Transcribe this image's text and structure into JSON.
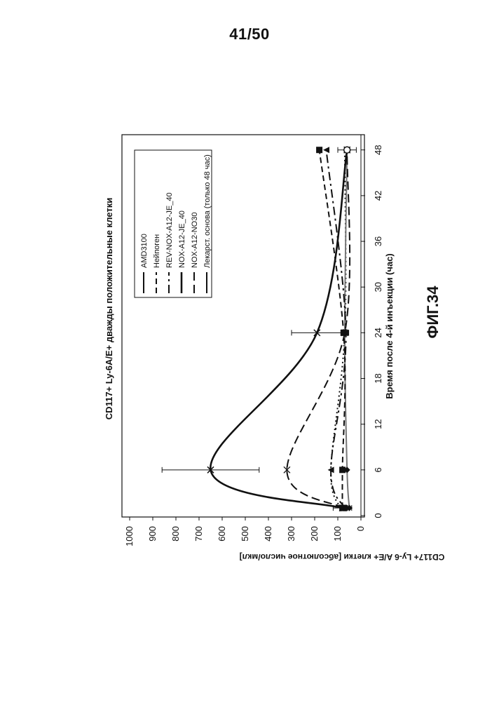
{
  "page_number": "41/50",
  "figure_label": "ФИГ.34",
  "chart_data": {
    "type": "line",
    "title": "CD117+ Ly-6A/E+ дважды положительные клетки",
    "xlabel": "Время после 4-й инъекции (час)",
    "ylabel": "CD117+ Ly-6 A/E+ клетки [абсолютное число/мкл]",
    "x_ticks": [
      "0",
      "6",
      "12",
      "18",
      "24",
      "30",
      "36",
      "42",
      "48"
    ],
    "y_ticks": [
      "0",
      "100",
      "200",
      "300",
      "400",
      "500",
      "600",
      "700",
      "800",
      "900",
      "1000"
    ],
    "xlim": [
      0,
      50
    ],
    "ylim": [
      0,
      1000
    ],
    "grid": false,
    "legend_position": "top-right",
    "x": [
      1,
      6,
      24,
      48
    ],
    "series": [
      {
        "name": "AMD3100",
        "marker": "diamond",
        "dash": "solid",
        "color": "#777777",
        "values": [
          50,
          60,
          70,
          60
        ]
      },
      {
        "name": "Нейпоген",
        "marker": "square",
        "dash": "dash",
        "color": "#111111",
        "values": [
          80,
          80,
          75,
          180
        ]
      },
      {
        "name": "REV-NOX-A12-JE_40",
        "marker": "triangle",
        "dash": "dashdot",
        "color": "#111111",
        "values": [
          70,
          130,
          65,
          150
        ]
      },
      {
        "name": "NOX-A12-JE_40",
        "marker": "x",
        "dash": "solid-thick",
        "color": "#111111",
        "values": [
          80,
          650,
          190,
          60
        ]
      },
      {
        "name": "NOX-A12-NO30",
        "marker": "star",
        "dash": "dash-long",
        "color": "#111111",
        "values": [
          75,
          320,
          70,
          60
        ]
      },
      {
        "name": "Лекарст. основа (только 48 час)",
        "marker": "circle",
        "dash": "solid",
        "color": "#111111",
        "values": [
          null,
          null,
          null,
          60
        ]
      }
    ],
    "extra_series_dotted": {
      "name": "",
      "values": [
        90,
        130,
        70,
        70
      ]
    }
  }
}
